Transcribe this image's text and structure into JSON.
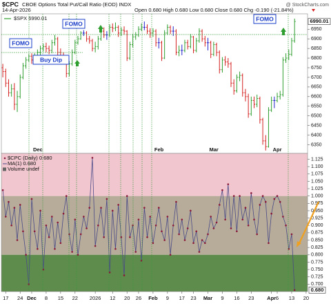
{
  "header": {
    "symbol": "$CPC",
    "title": "CBOE Options Total Put/Call Ratio (EOD) INDX",
    "date": "14-Apr-2026",
    "stats": "Open 0.680  High 0.680  Low 0.680  Close 0.680  Chg -0.190 (-21.84%)",
    "source": "@ StockCharts.com"
  },
  "chart_data": [
    {
      "type": "ohlc",
      "series_name": "$SPX 6990.01",
      "categories": [
        null,
        "17",
        null,
        null,
        null,
        null,
        "24",
        null,
        null,
        null,
        "Dec",
        null,
        null,
        null,
        null,
        "8",
        null,
        null,
        null,
        null,
        "15",
        null,
        null,
        null,
        null,
        "22",
        null,
        null,
        null,
        null,
        null,
        null,
        "2026",
        null,
        null,
        null,
        null,
        null,
        "12",
        null,
        null,
        null,
        null,
        "20",
        null,
        null,
        null,
        "26",
        null,
        null,
        null,
        null,
        "Feb",
        null,
        null,
        null,
        null,
        "9",
        null,
        null,
        null,
        null,
        "17",
        null,
        null,
        null,
        "23",
        null,
        null,
        null,
        null,
        "Mar",
        null,
        null,
        null,
        null,
        "9",
        null,
        null,
        null,
        null,
        "16",
        null,
        null,
        null,
        null,
        "23",
        null,
        null,
        null,
        null,
        null,
        null,
        "Apr",
        null,
        "6",
        null,
        null,
        null,
        null,
        "13",
        null,
        null,
        null,
        null,
        "20"
      ],
      "open": [
        6750,
        6730,
        6670,
        6620,
        6640,
        6560,
        6600,
        6700,
        6760,
        6790,
        6810,
        6790,
        6810,
        6830,
        6850,
        6860,
        6850,
        6840,
        6880,
        6900,
        6830,
        6810,
        6800,
        6720,
        6770,
        6830,
        6880,
        6900,
        6930,
        6930,
        6900,
        6890,
        6850,
        6860,
        6900,
        6940,
        6920,
        6920,
        6960,
        6955,
        6960,
        6930,
        6945,
        6940,
        6800,
        6870,
        6910,
        6920,
        6950,
        6960,
        6960,
        6940,
        6930,
        6940,
        6880,
        6880,
        6800,
        6930,
        6960,
        6940,
        6940,
        6830,
        6840,
        6840,
        6880,
        6860,
        6910,
        6840,
        6890,
        6940,
        6900,
        6880,
        6880,
        6820,
        6870,
        6830,
        6740,
        6790,
        6780,
        6770,
        6670,
        6630,
        6700,
        6710,
        6620,
        6600,
        6510,
        6580,
        6560,
        6590,
        6480,
        6370,
        6340,
        6530,
        6580,
        6580,
        6600,
        6610,
        6790,
        6800,
        6820,
        6890,
        null,
        null,
        null,
        null
      ],
      "high": [
        6770,
        6745,
        6690,
        6665,
        6670,
        6630,
        6715,
        6775,
        6805,
        6820,
        6825,
        6825,
        6845,
        6865,
        6875,
        6880,
        6865,
        6895,
        6920,
        6910,
        6850,
        6830,
        6810,
        6785,
        6845,
        6895,
        6915,
        6940,
        6945,
        6940,
        6915,
        6900,
        6885,
        6915,
        6955,
        6960,
        6940,
        6975,
        6980,
        6985,
        6970,
        6960,
        6965,
        6945,
        6885,
        6925,
        6935,
        6965,
        6980,
        6990,
        6975,
        6955,
        6955,
        6950,
        6905,
        6890,
        6945,
        6975,
        6970,
        6965,
        6950,
        6865,
        6870,
        6895,
        6895,
        6925,
        6915,
        6905,
        6955,
        6950,
        6915,
        6905,
        6890,
        6885,
        6880,
        6840,
        6805,
        6810,
        6800,
        6780,
        6690,
        6715,
        6730,
        6720,
        6640,
        6615,
        6600,
        6600,
        6610,
        6600,
        6490,
        6400,
        6545,
        6600,
        6600,
        6620,
        6630,
        6805,
        6825,
        6845,
        6905,
        7005,
        null,
        null,
        null,
        null
      ],
      "low": [
        6700,
        6650,
        6600,
        6600,
        6530,
        6520,
        6590,
        6690,
        6745,
        6780,
        6770,
        6775,
        6795,
        6815,
        6835,
        6830,
        6820,
        6825,
        6865,
        6810,
        6790,
        6775,
        6700,
        6705,
        6760,
        6820,
        6870,
        6895,
        6915,
        6885,
        6875,
        6835,
        6830,
        6845,
        6890,
        6905,
        6895,
        6910,
        6935,
        6940,
        6910,
        6915,
        6920,
        6785,
        6790,
        6855,
        6895,
        6910,
        6940,
        6945,
        6925,
        6905,
        6910,
        6860,
        6850,
        6785,
        6795,
        6920,
        6925,
        6915,
        6815,
        6810,
        6815,
        6830,
        6845,
        6850,
        6825,
        6830,
        6880,
        6885,
        6860,
        6840,
        6800,
        6810,
        6810,
        6720,
        6725,
        6760,
        6750,
        6650,
        6610,
        6620,
        6680,
        6600,
        6575,
        6490,
        6500,
        6540,
        6545,
        6460,
        6350,
        6320,
        6335,
        6520,
        6540,
        6570,
        6585,
        6600,
        6775,
        6790,
        6810,
        6880,
        null,
        null,
        null,
        null
      ],
      "close": [
        6730,
        6670,
        6620,
        6640,
        6560,
        6600,
        6700,
        6760,
        6790,
        6810,
        6790,
        6810,
        6830,
        6850,
        6860,
        6850,
        6840,
        6880,
        6900,
        6830,
        6810,
        6800,
        6720,
        6770,
        6830,
        6880,
        6900,
        6930,
        6930,
        6900,
        6890,
        6850,
        6860,
        6900,
        6940,
        6920,
        6920,
        6960,
        6955,
        6960,
        6930,
        6945,
        6940,
        6800,
        6870,
        6910,
        6920,
        6950,
        6960,
        6960,
        6940,
        6930,
        6940,
        6880,
        6880,
        6800,
        6930,
        6960,
        6940,
        6940,
        6830,
        6840,
        6840,
        6880,
        6860,
        6910,
        6840,
        6890,
        6940,
        6900,
        6880,
        6880,
        6820,
        6870,
        6830,
        6740,
        6790,
        6780,
        6770,
        6670,
        6630,
        6700,
        6710,
        6620,
        6600,
        6510,
        6580,
        6560,
        6590,
        6480,
        6370,
        6340,
        6530,
        6580,
        6580,
        6600,
        6610,
        6790,
        6800,
        6820,
        6890,
        6990.01,
        null,
        null,
        null,
        null
      ],
      "up_color": "#2e9e2e",
      "down_color": "#d42020",
      "flat_color": "#2222cc",
      "ylim": [
        6305,
        7030
      ],
      "yticks": [
        6350,
        6400,
        6450,
        6500,
        6550,
        6600,
        6650,
        6700,
        6750,
        6800,
        6850,
        6900,
        6950
      ],
      "annotations": [
        "FOMO",
        "FOMO",
        "Buy Dip",
        "FOMO"
      ]
    },
    {
      "type": "line",
      "series_name": "$CPC (Daily) 0.680",
      "ma_name": "MA(1) 0.680",
      "volume_name": "Volume undef",
      "values": [
        1.02,
        0.93,
        0.98,
        0.9,
        0.96,
        0.85,
        0.97,
        0.88,
        0.8,
        0.7,
        0.99,
        0.88,
        0.82,
        0.95,
        0.75,
        0.9,
        0.86,
        0.93,
        0.82,
        0.91,
        0.84,
        0.94,
        1.0,
        0.87,
        0.81,
        0.92,
        0.8,
        0.87,
        0.93,
        0.89,
        0.96,
        1.13,
        0.83,
        0.9,
        0.96,
        0.86,
        0.99,
        0.74,
        0.95,
        0.82,
        0.97,
        0.86,
        0.73,
        1.0,
        0.86,
        0.9,
        0.81,
        0.92,
        0.78,
        0.96,
        0.86,
        0.93,
        0.84,
        0.9,
        0.96,
        0.88,
        0.85,
        0.93,
        0.8,
        0.9,
        0.98,
        0.87,
        0.92,
        0.85,
        0.89,
        0.95,
        0.84,
        0.88,
        0.81,
        0.85,
        0.84,
        0.87,
        0.93,
        0.89,
        0.91,
        0.97,
        1.02,
        0.92,
        1.04,
        0.89,
        1.0,
        0.88,
        1.0,
        0.92,
        0.96,
        0.9,
        1.01,
        0.92,
        0.87,
        0.97,
        1.0,
        0.98,
        0.84,
        0.94,
        0.99,
        1.0,
        0.98,
        0.93,
        0.9,
        0.82,
        0.87,
        0.68,
        null,
        null,
        null,
        null
      ],
      "value_labels": [
        null,
        null,
        null,
        null,
        null,
        null,
        null,
        null,
        null,
        null,
        null,
        null,
        null,
        null,
        null,
        null,
        null,
        null,
        null,
        null,
        null,
        null,
        null,
        null,
        null,
        null,
        null,
        null,
        null,
        null,
        null,
        null,
        null,
        null,
        null,
        null,
        null,
        null,
        null,
        null,
        null,
        null,
        null,
        null,
        null,
        null,
        null,
        null,
        null,
        null,
        null,
        null,
        null,
        null,
        null,
        null,
        null,
        null,
        null,
        null,
        null,
        null,
        null,
        null,
        null,
        null,
        null,
        null,
        null,
        null,
        null,
        null,
        null,
        null,
        null,
        null,
        null,
        null,
        null,
        null,
        null,
        null,
        null,
        null,
        null,
        null,
        null,
        null,
        null,
        null,
        null,
        null,
        null,
        null,
        null,
        null,
        null,
        null,
        null,
        null,
        null,
        "0.680",
        null,
        null,
        null,
        null
      ],
      "color": "#4a4a88",
      "marker_color": "#8a1838",
      "bands": [
        {
          "from": 1.0,
          "to": 1.145,
          "color": "#f1c6cf"
        },
        {
          "from": 0.8,
          "to": 1.0,
          "color": "#b7ac99"
        },
        {
          "from": 0.675,
          "to": 0.8,
          "color": "#5d8c4c"
        }
      ],
      "ylim": [
        0.675,
        1.145
      ],
      "yticks": [
        {
          "value": 0.7,
          "label": "0.700"
        },
        {
          "value": 0.725,
          "label": "0.725"
        },
        {
          "value": 0.75,
          "label": "0.750"
        },
        {
          "value": 0.775,
          "label": "0.775"
        },
        {
          "value": 0.8,
          "label": "0.800"
        },
        {
          "value": 0.825,
          "label": "0.825"
        },
        {
          "value": 0.85,
          "label": "0.850"
        },
        {
          "value": 0.875,
          "label": "0.875"
        },
        {
          "value": 0.9,
          "label": "0.900"
        },
        {
          "value": 0.925,
          "label": "0.925"
        },
        {
          "value": 0.95,
          "label": "0.950"
        },
        {
          "value": 0.975,
          "label": "0.975"
        },
        {
          "value": 1.0,
          "label": "1.000"
        },
        {
          "value": 1.025,
          "label": "1.025"
        },
        {
          "value": 1.05,
          "label": "1.050"
        },
        {
          "value": 1.075,
          "label": "1.075"
        },
        {
          "value": 1.1,
          "label": "1.100"
        },
        {
          "value": 1.125,
          "label": "1.125"
        }
      ]
    }
  ]
}
